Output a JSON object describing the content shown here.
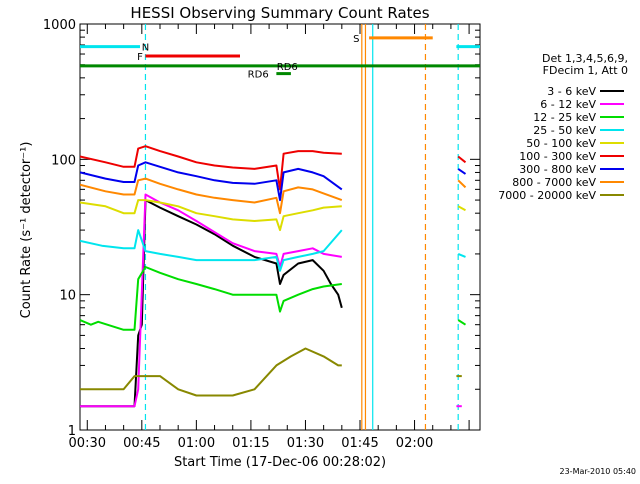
{
  "chart_data": {
    "type": "line",
    "title": "HESSI Observing Summary Count Rates",
    "xlabel": "Start Time (17-Dec-06 00:28:02)",
    "ylabel": "Count Rate (s⁻¹ detector⁻¹)",
    "yscale": "log",
    "ylim": [
      1,
      1000
    ],
    "xlim_minutes": [
      28,
      138
    ],
    "x_ticks": [
      {
        "minute": 30,
        "label": "00:30"
      },
      {
        "minute": 45,
        "label": "00:45"
      },
      {
        "minute": 60,
        "label": "01:00"
      },
      {
        "minute": 75,
        "label": "01:15"
      },
      {
        "minute": 90,
        "label": "01:30"
      },
      {
        "minute": 105,
        "label": "01:45"
      },
      {
        "minute": 120,
        "label": "02:00"
      }
    ],
    "y_ticks": [
      {
        "value": 1,
        "label": "1"
      },
      {
        "value": 10,
        "label": "10"
      },
      {
        "value": 100,
        "label": "100"
      },
      {
        "value": 1000,
        "label": "1000"
      }
    ],
    "legend": {
      "header": [
        "Det 1,3,4,5,6,9,",
        "FDecim 1, Att 0"
      ],
      "placement": "right"
    },
    "flag_bars": [
      {
        "label": "N",
        "color": "#00e5ee",
        "y": 680,
        "segments": [
          [
            28,
            44.5
          ],
          [
            131.5,
            138
          ]
        ],
        "label_at": 46
      },
      {
        "label": "F",
        "color": "#ee0000",
        "y": 580,
        "segments": [
          [
            46,
            72
          ]
        ],
        "label_at": 44.5
      },
      {
        "label": "RD6",
        "color": "#008800",
        "y": 490,
        "segments": [
          [
            28,
            138
          ]
        ],
        "label_at": 85
      },
      {
        "label": "RD6",
        "color": "#008800",
        "y": 430,
        "segments": [
          [
            82,
            86
          ]
        ],
        "label_at": 77
      },
      {
        "label": "S",
        "color": "#ff8800",
        "y": 790,
        "segments": [
          [
            107.5,
            125
          ]
        ],
        "label_at": 104
      }
    ],
    "vertical_lines": [
      {
        "minute": 46,
        "color": "#00e5ee",
        "style": "dashed"
      },
      {
        "minute": 105.5,
        "color": "#ff8800",
        "style": "solid"
      },
      {
        "minute": 106.5,
        "color": "#ff8800",
        "style": "solid"
      },
      {
        "minute": 108.5,
        "color": "#00e5ee",
        "style": "solid"
      },
      {
        "minute": 123,
        "color": "#ff8800",
        "style": "dashed"
      },
      {
        "minute": 132,
        "color": "#00e5ee",
        "style": "dashed"
      }
    ],
    "series": [
      {
        "name": "3 - 6 keV",
        "color": "#000000",
        "x": [
          28,
          43,
          44,
          45,
          46,
          50,
          55,
          60,
          65,
          70,
          76,
          82,
          83,
          84,
          88,
          92,
          95,
          97,
          99,
          100
        ],
        "y": [
          1.5,
          1.5,
          5,
          6,
          50,
          44,
          38,
          33,
          28,
          23,
          19,
          17,
          12,
          14,
          17,
          18,
          15,
          12,
          10,
          8
        ]
      },
      {
        "name": "6 - 12 keV",
        "color": "#ff00ff",
        "x": [
          28,
          43,
          44,
          46,
          50,
          55,
          60,
          65,
          70,
          76,
          82,
          83,
          84,
          88,
          92,
          95,
          100
        ],
        "y": [
          1.5,
          1.5,
          2,
          55,
          48,
          42,
          35,
          29,
          24,
          21,
          20,
          16,
          20,
          21,
          22,
          20,
          19
        ]
      },
      {
        "name": "12 - 25 keV",
        "color": "#00dd00",
        "x": [
          28,
          31,
          33,
          40,
          43,
          44,
          46,
          50,
          55,
          60,
          65,
          70,
          76,
          82,
          83,
          84,
          88,
          92,
          95,
          100
        ],
        "y": [
          6.5,
          6,
          6.3,
          5.5,
          5.5,
          13,
          16,
          14.5,
          13,
          12,
          11,
          10,
          10,
          10,
          7.5,
          9,
          10,
          11,
          11.5,
          12
        ]
      },
      {
        "name": "25 - 50 keV",
        "color": "#00e5ee",
        "x": [
          28,
          34,
          40,
          43,
          44,
          46,
          50,
          55,
          60,
          65,
          70,
          76,
          82,
          83,
          84,
          88,
          92,
          95,
          100
        ],
        "y": [
          25,
          23,
          22,
          22,
          30,
          21,
          20,
          19,
          18,
          18,
          18,
          18,
          19,
          15,
          18,
          19,
          20,
          21,
          30
        ]
      },
      {
        "name": "50 - 100 keV",
        "color": "#dddd00",
        "x": [
          28,
          35,
          40,
          43,
          44,
          46,
          50,
          55,
          60,
          65,
          70,
          76,
          82,
          83,
          84,
          88,
          92,
          95,
          100
        ],
        "y": [
          48,
          45,
          40,
          40,
          50,
          50,
          48,
          45,
          40,
          38,
          36,
          35,
          36,
          30,
          38,
          40,
          42,
          44,
          45
        ]
      },
      {
        "name": "100 - 300 keV",
        "color": "#ee0000",
        "x": [
          28,
          35,
          40,
          43,
          44,
          46,
          50,
          55,
          60,
          65,
          70,
          76,
          82,
          83,
          84,
          88,
          92,
          95,
          100
        ],
        "y": [
          105,
          95,
          88,
          88,
          120,
          125,
          115,
          105,
          95,
          90,
          87,
          85,
          90,
          60,
          110,
          115,
          115,
          112,
          110
        ]
      },
      {
        "name": "300 - 800 keV",
        "color": "#0000ee",
        "x": [
          28,
          35,
          40,
          43,
          44,
          46,
          50,
          55,
          60,
          65,
          70,
          76,
          82,
          83,
          84,
          88,
          92,
          95,
          100
        ],
        "y": [
          80,
          72,
          68,
          68,
          90,
          95,
          88,
          80,
          75,
          70,
          67,
          66,
          70,
          50,
          80,
          85,
          80,
          75,
          60
        ]
      },
      {
        "name": "800 - 7000 keV",
        "color": "#ff8800",
        "x": [
          28,
          35,
          40,
          43,
          44,
          46,
          50,
          55,
          60,
          65,
          70,
          76,
          82,
          83,
          84,
          88,
          92,
          95,
          100
        ],
        "y": [
          65,
          58,
          55,
          55,
          70,
          72,
          66,
          60,
          55,
          52,
          50,
          48,
          52,
          40,
          58,
          62,
          60,
          56,
          50
        ]
      },
      {
        "name": "7000 - 20000 keV",
        "color": "#888800",
        "x": [
          28,
          35,
          40,
          43,
          46,
          50,
          55,
          60,
          70,
          76,
          82,
          86,
          90,
          95,
          99,
          100
        ],
        "y": [
          2,
          2,
          2,
          2.5,
          2.5,
          2.5,
          2,
          1.8,
          1.8,
          2,
          3,
          3.5,
          4,
          3.5,
          3,
          3
        ]
      }
    ],
    "right_tail_series": [
      {
        "name": "100 - 300 keV",
        "color": "#ee0000",
        "x": [
          132,
          134
        ],
        "y": [
          105,
          95
        ]
      },
      {
        "name": "300 - 800 keV",
        "color": "#0000ee",
        "x": [
          132,
          134
        ],
        "y": [
          85,
          78
        ]
      },
      {
        "name": "800 - 7000 keV",
        "color": "#ff8800",
        "x": [
          132,
          134
        ],
        "y": [
          70,
          62
        ]
      },
      {
        "name": "50 - 100 keV",
        "color": "#dddd00",
        "x": [
          132,
          134
        ],
        "y": [
          45,
          42
        ]
      },
      {
        "name": "25 - 50 keV",
        "color": "#00e5ee",
        "x": [
          132,
          134
        ],
        "y": [
          20,
          19
        ]
      },
      {
        "name": "12 - 25 keV",
        "color": "#00dd00",
        "x": [
          132,
          134
        ],
        "y": [
          6.5,
          6
        ]
      },
      {
        "name": "7000 - 20000 keV",
        "color": "#888800",
        "x": [
          131.5,
          133
        ],
        "y": [
          2.5,
          2.5
        ]
      },
      {
        "name": "6 - 12 keV",
        "color": "#ff00ff",
        "x": [
          131.5,
          133
        ],
        "y": [
          1.5,
          1.5
        ]
      }
    ],
    "grid": false
  },
  "footer": {
    "timestamp": "23-Mar-2010 05:40"
  }
}
